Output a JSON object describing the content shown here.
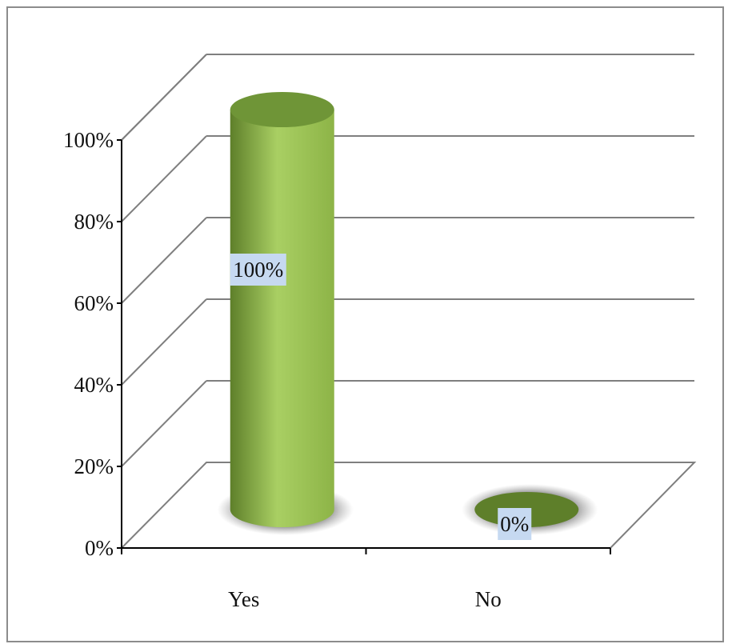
{
  "chart_data": {
    "type": "bar",
    "style": "3d-cylinder",
    "categories": [
      "Yes",
      "No"
    ],
    "series": [
      {
        "values": [
          100,
          0
        ]
      }
    ],
    "data_labels": [
      "100%",
      "0%"
    ],
    "y_ticks": [
      "0%",
      "20%",
      "40%",
      "60%",
      "80%",
      "100%"
    ],
    "ylim": [
      0,
      100
    ],
    "grid": true,
    "legend": "none",
    "colors": {
      "bar_light": "#a9cf63",
      "bar_mid": "#8db447",
      "bar_dark": "#5e7f2a",
      "bar_top": "#6f9537",
      "label_bg": "#c6d9f1",
      "grid": "#7f7f7f"
    }
  }
}
